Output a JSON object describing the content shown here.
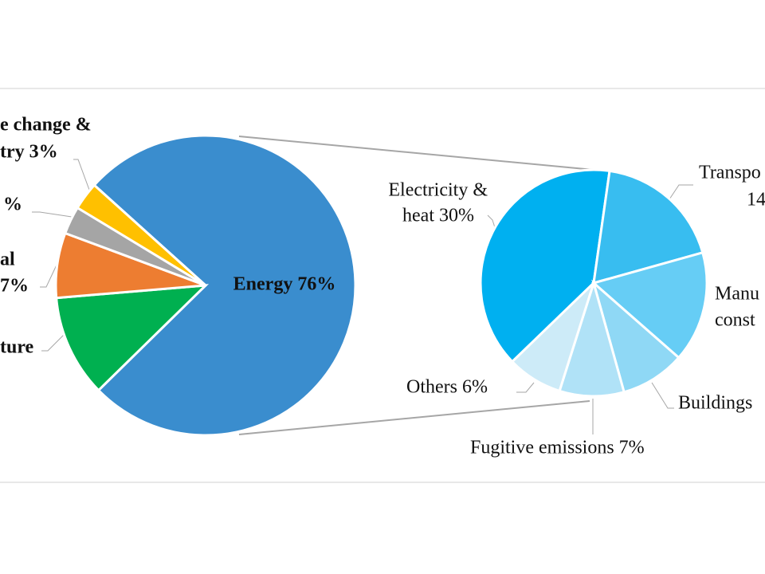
{
  "chart_data": [
    {
      "type": "pie",
      "values": [
        76,
        11,
        7,
        3,
        3
      ],
      "colors": [
        "#3a8dce",
        "#00b050",
        "#ed7d31",
        "#a5a5a5",
        "#ffc000"
      ],
      "labels": [
        [
          "Energy 76%"
        ],
        [
          "ture"
        ],
        [
          "al",
          "7%"
        ],
        [
          "%"
        ],
        [
          "e change &",
          "try 3%"
        ]
      ]
    },
    {
      "type": "pie",
      "values": [
        30,
        14,
        12,
        7,
        7,
        6
      ],
      "colors": [
        "#00b0f0",
        "#38bdf0",
        "#66cdf5",
        "#8fd8f5",
        "#b0e2f7",
        "#cdebf8"
      ],
      "labels": [
        [
          "Electricity &",
          "heat 30%"
        ],
        [
          "Transpo",
          "14"
        ],
        [
          "Manu",
          "const"
        ],
        [
          "Buildings"
        ],
        [
          "Fugitive emissions 7%"
        ],
        [
          "Others 6%"
        ]
      ]
    }
  ]
}
